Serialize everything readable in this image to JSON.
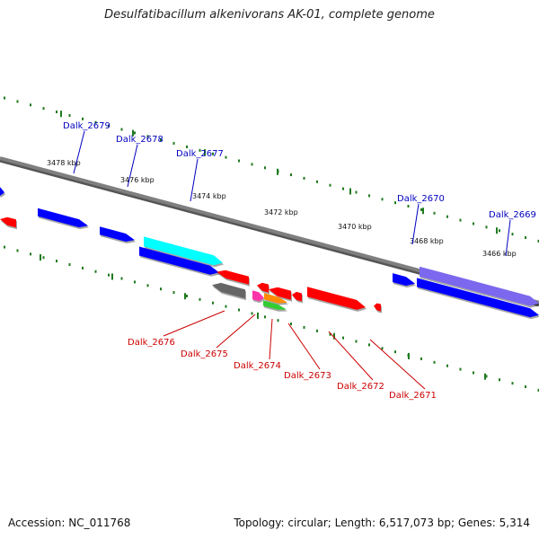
{
  "title": "Desulfatibacillum alkenivorans AK-01, complete genome",
  "footer": {
    "accession": "Accession: NC_011768",
    "summary": "Topology: circular; Length: 6,517,073 bp; Genes: 5,314"
  },
  "colors": {
    "backbone": "#7f7f7f",
    "tick": "#1f7a1f",
    "label_top": "#0000c0",
    "label_bottom": "#cc0000",
    "gene_blue": "#0000ff",
    "gene_cyan": "#00ffff",
    "gene_violet": "#7b68ee",
    "gene_red": "#ff0000",
    "gene_gray": "#666666",
    "gene_magenta": "#ff33aa",
    "gene_orange": "#ff8c00",
    "gene_green": "#33cc33"
  },
  "scale_labels": [
    "3478 kbp",
    "3476 kbp",
    "3474 kbp",
    "3472 kbp",
    "3470 kbp",
    "3468 kbp",
    "3466 kbp"
  ],
  "top_gene_labels": [
    "Dalk_2679",
    "Dalk_2678",
    "Dalk_2677",
    "Dalk_2670",
    "Dalk_2669"
  ],
  "bottom_gene_labels": [
    "Dalk_2676",
    "Dalk_2675",
    "Dalk_2674",
    "Dalk_2673",
    "Dalk_2672",
    "Dalk_2671"
  ]
}
